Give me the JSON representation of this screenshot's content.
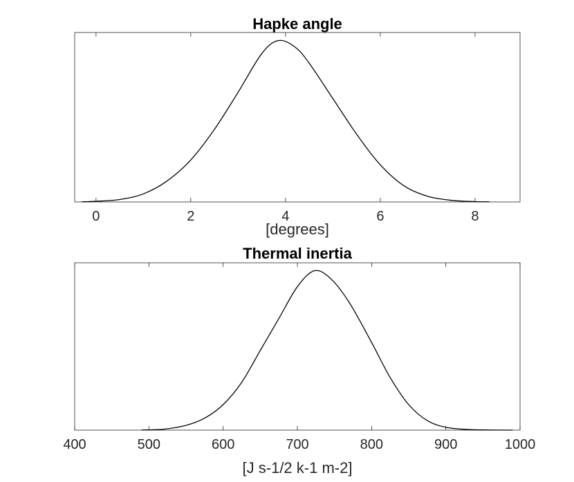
{
  "chart_data": [
    {
      "type": "line",
      "title": "Hapke angle",
      "xlabel": "[degrees]",
      "ylabel": "",
      "xlim": [
        -0.45,
        8.95
      ],
      "ylim": [
        0,
        1.05
      ],
      "xticks": [
        0,
        2,
        4,
        6,
        8
      ],
      "xticklabels": [
        "0",
        "2",
        "4",
        "6",
        "8"
      ],
      "yticks_visible": false,
      "grid": false,
      "series": [
        {
          "x": [
            -0.3,
            0.0,
            0.5,
            1.0,
            1.5,
            2.0,
            2.5,
            3.0,
            3.5,
            3.85,
            4.2,
            4.5,
            5.0,
            5.5,
            6.0,
            6.5,
            7.0,
            7.5,
            8.0,
            8.3
          ],
          "y": [
            0.001,
            0.004,
            0.015,
            0.05,
            0.13,
            0.26,
            0.45,
            0.68,
            0.92,
            1.0,
            0.96,
            0.86,
            0.64,
            0.42,
            0.23,
            0.1,
            0.035,
            0.01,
            0.002,
            0.001
          ]
        }
      ]
    },
    {
      "type": "line",
      "title": "Thermal inertia",
      "xlabel": "[J s-1/2 k-1 m-2]",
      "ylabel": "",
      "xlim": [
        400,
        1000
      ],
      "ylim": [
        0,
        1.05
      ],
      "xticks": [
        400,
        500,
        600,
        700,
        800,
        900,
        1000
      ],
      "xticklabels": [
        "400",
        "500",
        "600",
        "700",
        "800",
        "900",
        "1000"
      ],
      "yticks_visible": false,
      "grid": false,
      "series": [
        {
          "x": [
            490,
            520,
            550,
            575,
            600,
            625,
            650,
            675,
            700,
            723,
            745,
            770,
            800,
            825,
            850,
            875,
            900,
            930,
            960,
            990
          ],
          "y": [
            0.001,
            0.006,
            0.03,
            0.075,
            0.16,
            0.3,
            0.5,
            0.7,
            0.9,
            1.0,
            0.95,
            0.8,
            0.55,
            0.33,
            0.16,
            0.06,
            0.018,
            0.004,
            0.001,
            0.0
          ]
        }
      ]
    }
  ]
}
